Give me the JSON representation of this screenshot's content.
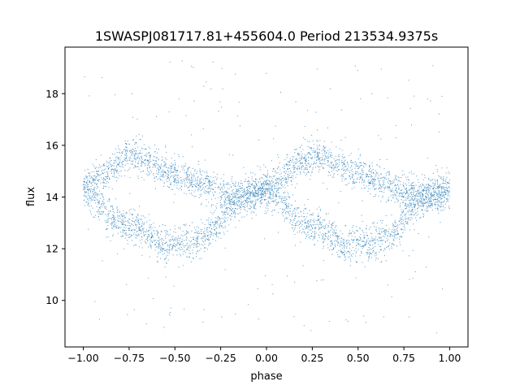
{
  "chart_data": {
    "type": "scatter",
    "title": "1SWASPJ081717.81+455604.0 Period 213534.9375s",
    "xlabel": "phase",
    "ylabel": "flux",
    "xlim": [
      -1.1,
      1.1
    ],
    "ylim": [
      8.2,
      19.8
    ],
    "x_ticks": [
      -1.0,
      -0.75,
      -0.5,
      -0.25,
      0.0,
      0.25,
      0.5,
      0.75,
      1.0
    ],
    "x_tick_labels": [
      "−1.00",
      "−0.75",
      "−0.50",
      "−0.25",
      "0.00",
      "0.25",
      "0.50",
      "0.75",
      "1.00"
    ],
    "y_ticks": [
      10,
      12,
      14,
      16,
      18
    ],
    "y_tick_labels": [
      "10",
      "12",
      "14",
      "16",
      "18"
    ],
    "grid": false,
    "marker_color": "#1f77b4",
    "phase_range": [
      -1.0,
      1.0
    ],
    "period_repeat": 1.0,
    "upper_branch": [
      {
        "phase": 0.0,
        "flux": 14.3
      },
      {
        "phase": 0.1,
        "flux": 14.9
      },
      {
        "phase": 0.2,
        "flux": 15.4
      },
      {
        "phase": 0.27,
        "flux": 15.6
      },
      {
        "phase": 0.35,
        "flux": 15.4
      },
      {
        "phase": 0.45,
        "flux": 15.0
      },
      {
        "phase": 0.55,
        "flux": 14.8
      },
      {
        "phase": 0.65,
        "flux": 14.5
      },
      {
        "phase": 0.75,
        "flux": 14.2
      },
      {
        "phase": 0.85,
        "flux": 14.0
      },
      {
        "phase": 0.95,
        "flux": 14.1
      },
      {
        "phase": 1.0,
        "flux": 14.3
      }
    ],
    "lower_branch": [
      {
        "phase": 0.0,
        "flux": 14.3
      },
      {
        "phase": 0.08,
        "flux": 13.9
      },
      {
        "phase": 0.15,
        "flux": 13.2
      },
      {
        "phase": 0.22,
        "flux": 12.9
      },
      {
        "phase": 0.3,
        "flux": 12.8
      },
      {
        "phase": 0.38,
        "flux": 12.4
      },
      {
        "phase": 0.43,
        "flux": 12.0
      },
      {
        "phase": 0.5,
        "flux": 12.3
      },
      {
        "phase": 0.58,
        "flux": 12.2
      },
      {
        "phase": 0.65,
        "flux": 12.4
      },
      {
        "phase": 0.72,
        "flux": 12.8
      },
      {
        "phase": 0.78,
        "flux": 13.4
      },
      {
        "phase": 0.85,
        "flux": 13.9
      },
      {
        "phase": 0.95,
        "flux": 14.2
      },
      {
        "phase": 1.0,
        "flux": 14.3
      }
    ],
    "outlier_range": [
      8.7,
      19.3
    ]
  }
}
